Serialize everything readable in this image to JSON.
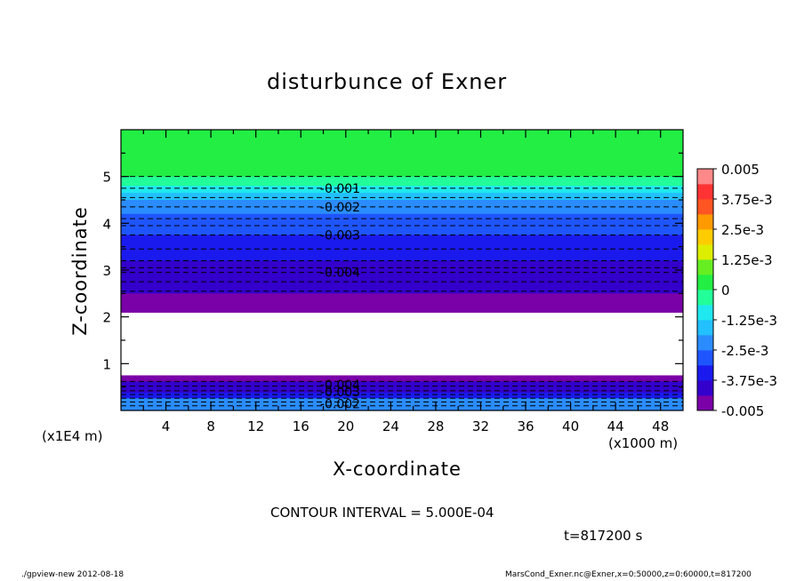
{
  "chart_data": {
    "type": "heatmap",
    "title": "disturbunce of Exner",
    "xlabel": "X-coordinate",
    "ylabel": "Z-coordinate",
    "x_unit_label": "(x1000 m)",
    "y_unit_label": "(x1E4 m)",
    "xlim": [
      0,
      50
    ],
    "ylim": [
      0,
      6
    ],
    "x_ticks": [
      "4",
      "8",
      "12",
      "16",
      "20",
      "24",
      "28",
      "32",
      "36",
      "40",
      "44",
      "48"
    ],
    "y_ticks": [
      "1",
      "2",
      "3",
      "4",
      "5"
    ],
    "x_tick_values": [
      4,
      8,
      12,
      16,
      20,
      24,
      28,
      32,
      36,
      40,
      44,
      48
    ],
    "y_tick_values": [
      1,
      2,
      3,
      4,
      5
    ],
    "colorbar": {
      "min": -0.005,
      "max": 0.005,
      "step": 0.000625,
      "labels": [
        "0.005",
        "3.75e-3",
        "2.5e-3",
        "1.25e-3",
        "0",
        "-1.25e-3",
        "-2.5e-3",
        "-3.75e-3",
        "-0.005"
      ],
      "label_values": [
        0.005,
        0.00375,
        0.0025,
        0.00125,
        0,
        -0.00125,
        -0.0025,
        -0.00375,
        -0.005
      ],
      "colors": [
        "#7a00a8",
        "#3300cc",
        "#1a1aee",
        "#1f55ff",
        "#2a8cff",
        "#22c0ff",
        "#1fe8ee",
        "#22ff9a",
        "#22ee44",
        "#66ee22",
        "#ddee00",
        "#ffcc00",
        "#ff9900",
        "#ff5522",
        "#ff3333",
        "#ff8888"
      ]
    },
    "upper_layer": {
      "z_values": [
        6.0,
        5.0,
        4.8,
        4.65,
        4.5,
        4.35,
        4.2,
        4.0,
        3.75,
        3.5,
        3.2,
        2.85,
        2.5,
        2.3,
        2.1
      ],
      "values": [
        0.0,
        -0.0004,
        -0.001,
        -0.0015,
        -0.002,
        -0.0025,
        -0.0028,
        -0.003,
        -0.0033,
        -0.0036,
        -0.004,
        -0.0043,
        -0.0046,
        -0.0049
      ]
    },
    "lower_layer": {
      "z_values": [
        0.75,
        0.62,
        0.5,
        0.38,
        0.26,
        0.14,
        0.0
      ],
      "values": [
        -0.0049,
        -0.0043,
        -0.004,
        -0.0032,
        -0.0025,
        -0.002
      ]
    },
    "contour_levels": [
      5.0,
      4.75,
      4.55,
      4.35,
      4.1,
      3.95,
      3.75,
      3.45,
      3.2,
      3.05,
      2.95,
      2.75,
      2.55,
      0.62,
      0.52,
      0.42,
      0.34,
      0.26,
      0.18,
      0.1
    ],
    "contour_labels": [
      {
        "text": "-0.001",
        "x": 19.5,
        "z": 4.75
      },
      {
        "text": "-0.002",
        "x": 19.5,
        "z": 4.35
      },
      {
        "text": "-0.003",
        "x": 19.5,
        "z": 3.75
      },
      {
        "text": "-0.004",
        "x": 19.5,
        "z": 2.95
      },
      {
        "text": "-0.004",
        "x": 19.5,
        "z": 0.55
      },
      {
        "text": "-0.003",
        "x": 19.5,
        "z": 0.4
      },
      {
        "text": "-0.002",
        "x": 19.5,
        "z": 0.14
      }
    ]
  },
  "footer": {
    "contour_interval": "CONTOUR INTERVAL = 5.000E-04",
    "time": "t=817200 s",
    "program": "./gpview-new   2012-08-18",
    "source": "MarsCond_Exner.nc@Exner,x=0:50000,z=0:60000,t=817200"
  }
}
